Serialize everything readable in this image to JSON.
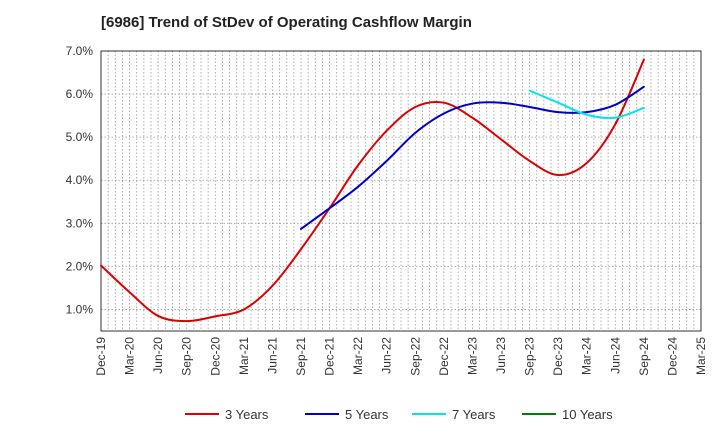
{
  "chart_data": {
    "type": "line",
    "title": "[6986]  Trend of StDev of Operating Cashflow Margin",
    "xlabel": "",
    "ylabel": "",
    "categories": [
      "Dec-19",
      "Mar-20",
      "Jun-20",
      "Sep-20",
      "Dec-20",
      "Mar-21",
      "Jun-21",
      "Sep-21",
      "Dec-21",
      "Mar-22",
      "Jun-22",
      "Sep-22",
      "Dec-22",
      "Mar-23",
      "Jun-23",
      "Sep-23",
      "Dec-23",
      "Mar-24",
      "Jun-24",
      "Sep-24",
      "Dec-24",
      "Mar-25"
    ],
    "y_ticks": [
      "1.0%",
      "2.0%",
      "3.0%",
      "4.0%",
      "5.0%",
      "6.0%",
      "7.0%"
    ],
    "ylim": [
      0.5,
      7.0
    ],
    "grid": true,
    "legend_position": "bottom",
    "series": [
      {
        "name": "3 Years",
        "color": "#dd0000",
        "values": [
          2.02,
          1.4,
          0.85,
          0.73,
          0.84,
          1.0,
          1.55,
          2.4,
          3.35,
          4.35,
          5.15,
          5.7,
          5.8,
          5.45,
          4.95,
          4.45,
          4.12,
          4.4,
          5.3,
          6.8,
          null,
          null
        ]
      },
      {
        "name": "5 Years",
        "color": "#0000cc",
        "values": [
          null,
          null,
          null,
          null,
          null,
          null,
          null,
          2.87,
          3.35,
          3.85,
          4.45,
          5.1,
          5.55,
          5.78,
          5.8,
          5.7,
          5.58,
          5.58,
          5.75,
          6.17,
          null,
          null
        ]
      },
      {
        "name": "7 Years",
        "color": "#00e5ee",
        "values": [
          null,
          null,
          null,
          null,
          null,
          null,
          null,
          null,
          null,
          null,
          null,
          null,
          null,
          null,
          null,
          6.08,
          5.8,
          5.52,
          5.45,
          5.68,
          null,
          null
        ]
      },
      {
        "name": "10 Years",
        "color": "#008000",
        "values": [
          null,
          null,
          null,
          null,
          null,
          null,
          null,
          null,
          null,
          null,
          null,
          null,
          null,
          null,
          null,
          null,
          null,
          null,
          null,
          null,
          null,
          null
        ]
      }
    ]
  }
}
